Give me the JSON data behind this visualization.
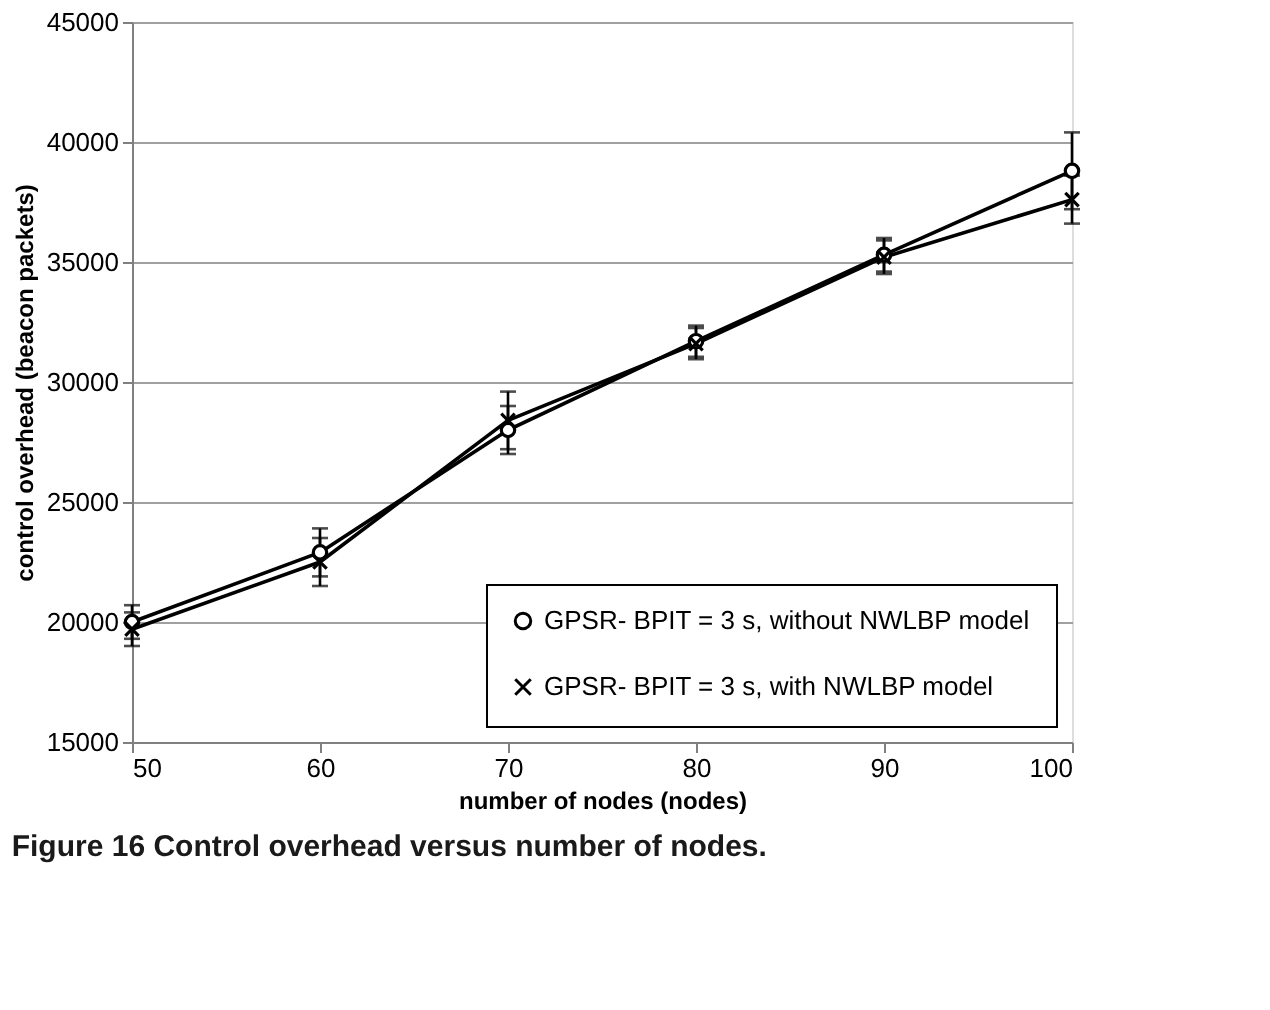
{
  "chart_data": {
    "type": "line",
    "xlabel": "number of nodes (nodes)",
    "ylabel": "control overhead (beacon packets)",
    "x": [
      50,
      60,
      70,
      80,
      90,
      100
    ],
    "series": [
      {
        "name": "GPSR- BPIT = 3 s, without NWLBP model",
        "color": "#000000",
        "marker": "circle",
        "values": [
          20000,
          22900,
          28000,
          31700,
          35300,
          38800
        ],
        "errors": [
          700,
          1000,
          1000,
          650,
          700,
          1600
        ]
      },
      {
        "name": "GPSR- BPIT = 3 s, with NWLBP model",
        "color": "#000000",
        "marker": "cross",
        "values": [
          19700,
          22500,
          28400,
          31600,
          35200,
          37600
        ],
        "errors": [
          700,
          1000,
          1200,
          650,
          700,
          1000
        ]
      }
    ],
    "xlim": [
      50,
      100
    ],
    "xticks": [
      50,
      60,
      70,
      80,
      90,
      100
    ],
    "ylim": [
      15000,
      45000
    ],
    "yticks": [
      15000,
      20000,
      25000,
      30000,
      35000,
      40000,
      45000
    ],
    "grid": "y",
    "legend": "bottom right",
    "line_style": "solid",
    "annotations": [
      "Figure 16 Control overhead versus number of nodes."
    ]
  }
}
